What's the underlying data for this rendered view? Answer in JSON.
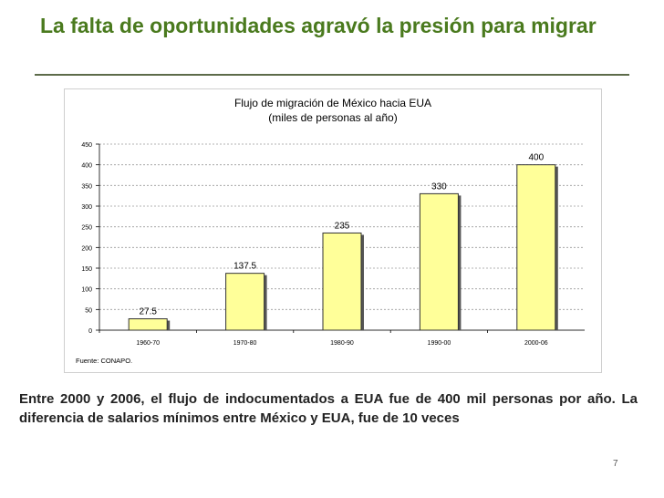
{
  "slide": {
    "title": "La falta de oportunidades agravó la presión para migrar",
    "body": "Entre 2000 y 2006, el flujo de indocumentados a EUA fue de 400 mil personas por año. La diferencia de salarios mínimos entre México y EUA, fue de 10 veces",
    "page_number": "7"
  },
  "chart_data": {
    "type": "bar",
    "title": "Flujo de migración de México hacia EUA",
    "subtitle": "(miles de personas al año)",
    "categories": [
      "1960-70",
      "1970-80",
      "1980-90",
      "1990-00",
      "2000-06"
    ],
    "values": [
      27.5,
      137.5,
      235,
      330,
      400
    ],
    "data_labels": [
      "27.5",
      "137.5",
      "235",
      "330",
      "400"
    ],
    "yticks": [
      0,
      50,
      100,
      150,
      200,
      250,
      300,
      350,
      400,
      450
    ],
    "ylim": [
      0,
      450
    ],
    "grid": true,
    "bar_color": "#ffff99",
    "source": "Fuente: CONAPO."
  }
}
